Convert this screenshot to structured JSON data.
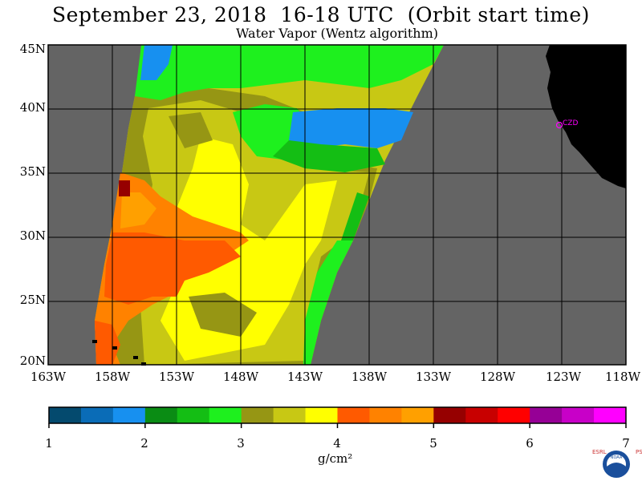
{
  "title": "September 23, 2018  16-18 UTC  (Orbit start time)",
  "subtitle": "Water Vapor (Wentz algorithm)",
  "y_labels": [
    "45N",
    "40N",
    "35N",
    "30N",
    "25N",
    "20N"
  ],
  "x_labels": [
    "163W",
    "158W",
    "153W",
    "148W",
    "143W",
    "138W",
    "133W",
    "128W",
    "123W",
    "118W"
  ],
  "lat_range": [
    20,
    45
  ],
  "lon_range": [
    -163,
    -118
  ],
  "place_label": "CZD",
  "colorbar": {
    "ticks": [
      "1",
      "2",
      "3",
      "4",
      "5",
      "6",
      "7"
    ],
    "units": "g/cm²",
    "range": [
      1,
      7
    ],
    "colors": [
      "#044a6e",
      "#0a6cb7",
      "#1790f0",
      "#0a8c14",
      "#14be14",
      "#1ef01e",
      "#969614",
      "#c8c814",
      "#ffff00",
      "#ff5a00",
      "#ff8200",
      "#ffa000",
      "#960000",
      "#c80000",
      "#ff0000",
      "#960096",
      "#c800c8",
      "#ff00ff"
    ]
  },
  "logo": {
    "name": "noaa-logo",
    "left_letters": "ESRL",
    "right_letters": "PSD",
    "text": "NOAA"
  },
  "colors": {
    "land": "#000000",
    "no_data": "#646464",
    "grid": "#000000",
    "place_marker": "#ff00ff"
  }
}
